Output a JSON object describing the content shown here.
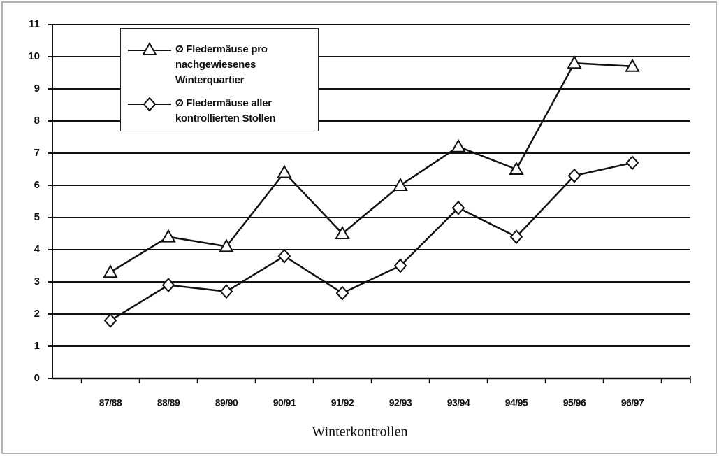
{
  "chart_data": {
    "type": "line",
    "xlabel": "Winterkontrollen",
    "categories": [
      "87/88",
      "88/89",
      "89/90",
      "90/91",
      "91/92",
      "92/93",
      "93/94",
      "94/95",
      "95/96",
      "96/97"
    ],
    "series": [
      {
        "name": "Ø Fledermäuse pro nachgewiesenes Winterquartier",
        "color": "#111111",
        "marker": "triangle",
        "values": [
          3.3,
          4.4,
          4.1,
          6.4,
          4.5,
          6.0,
          7.2,
          6.5,
          9.8,
          9.7
        ]
      },
      {
        "name": "Ø Fledermäuse aller kontrollierten Stollen",
        "color": "#111111",
        "marker": "diamond",
        "values": [
          1.8,
          2.9,
          2.7,
          3.8,
          2.65,
          3.5,
          5.3,
          4.4,
          6.3,
          6.7
        ]
      }
    ],
    "ylim": [
      0,
      11
    ],
    "yticks": [
      0,
      1,
      2,
      3,
      4,
      5,
      6,
      7,
      8,
      9,
      10,
      11
    ],
    "grid": true
  }
}
